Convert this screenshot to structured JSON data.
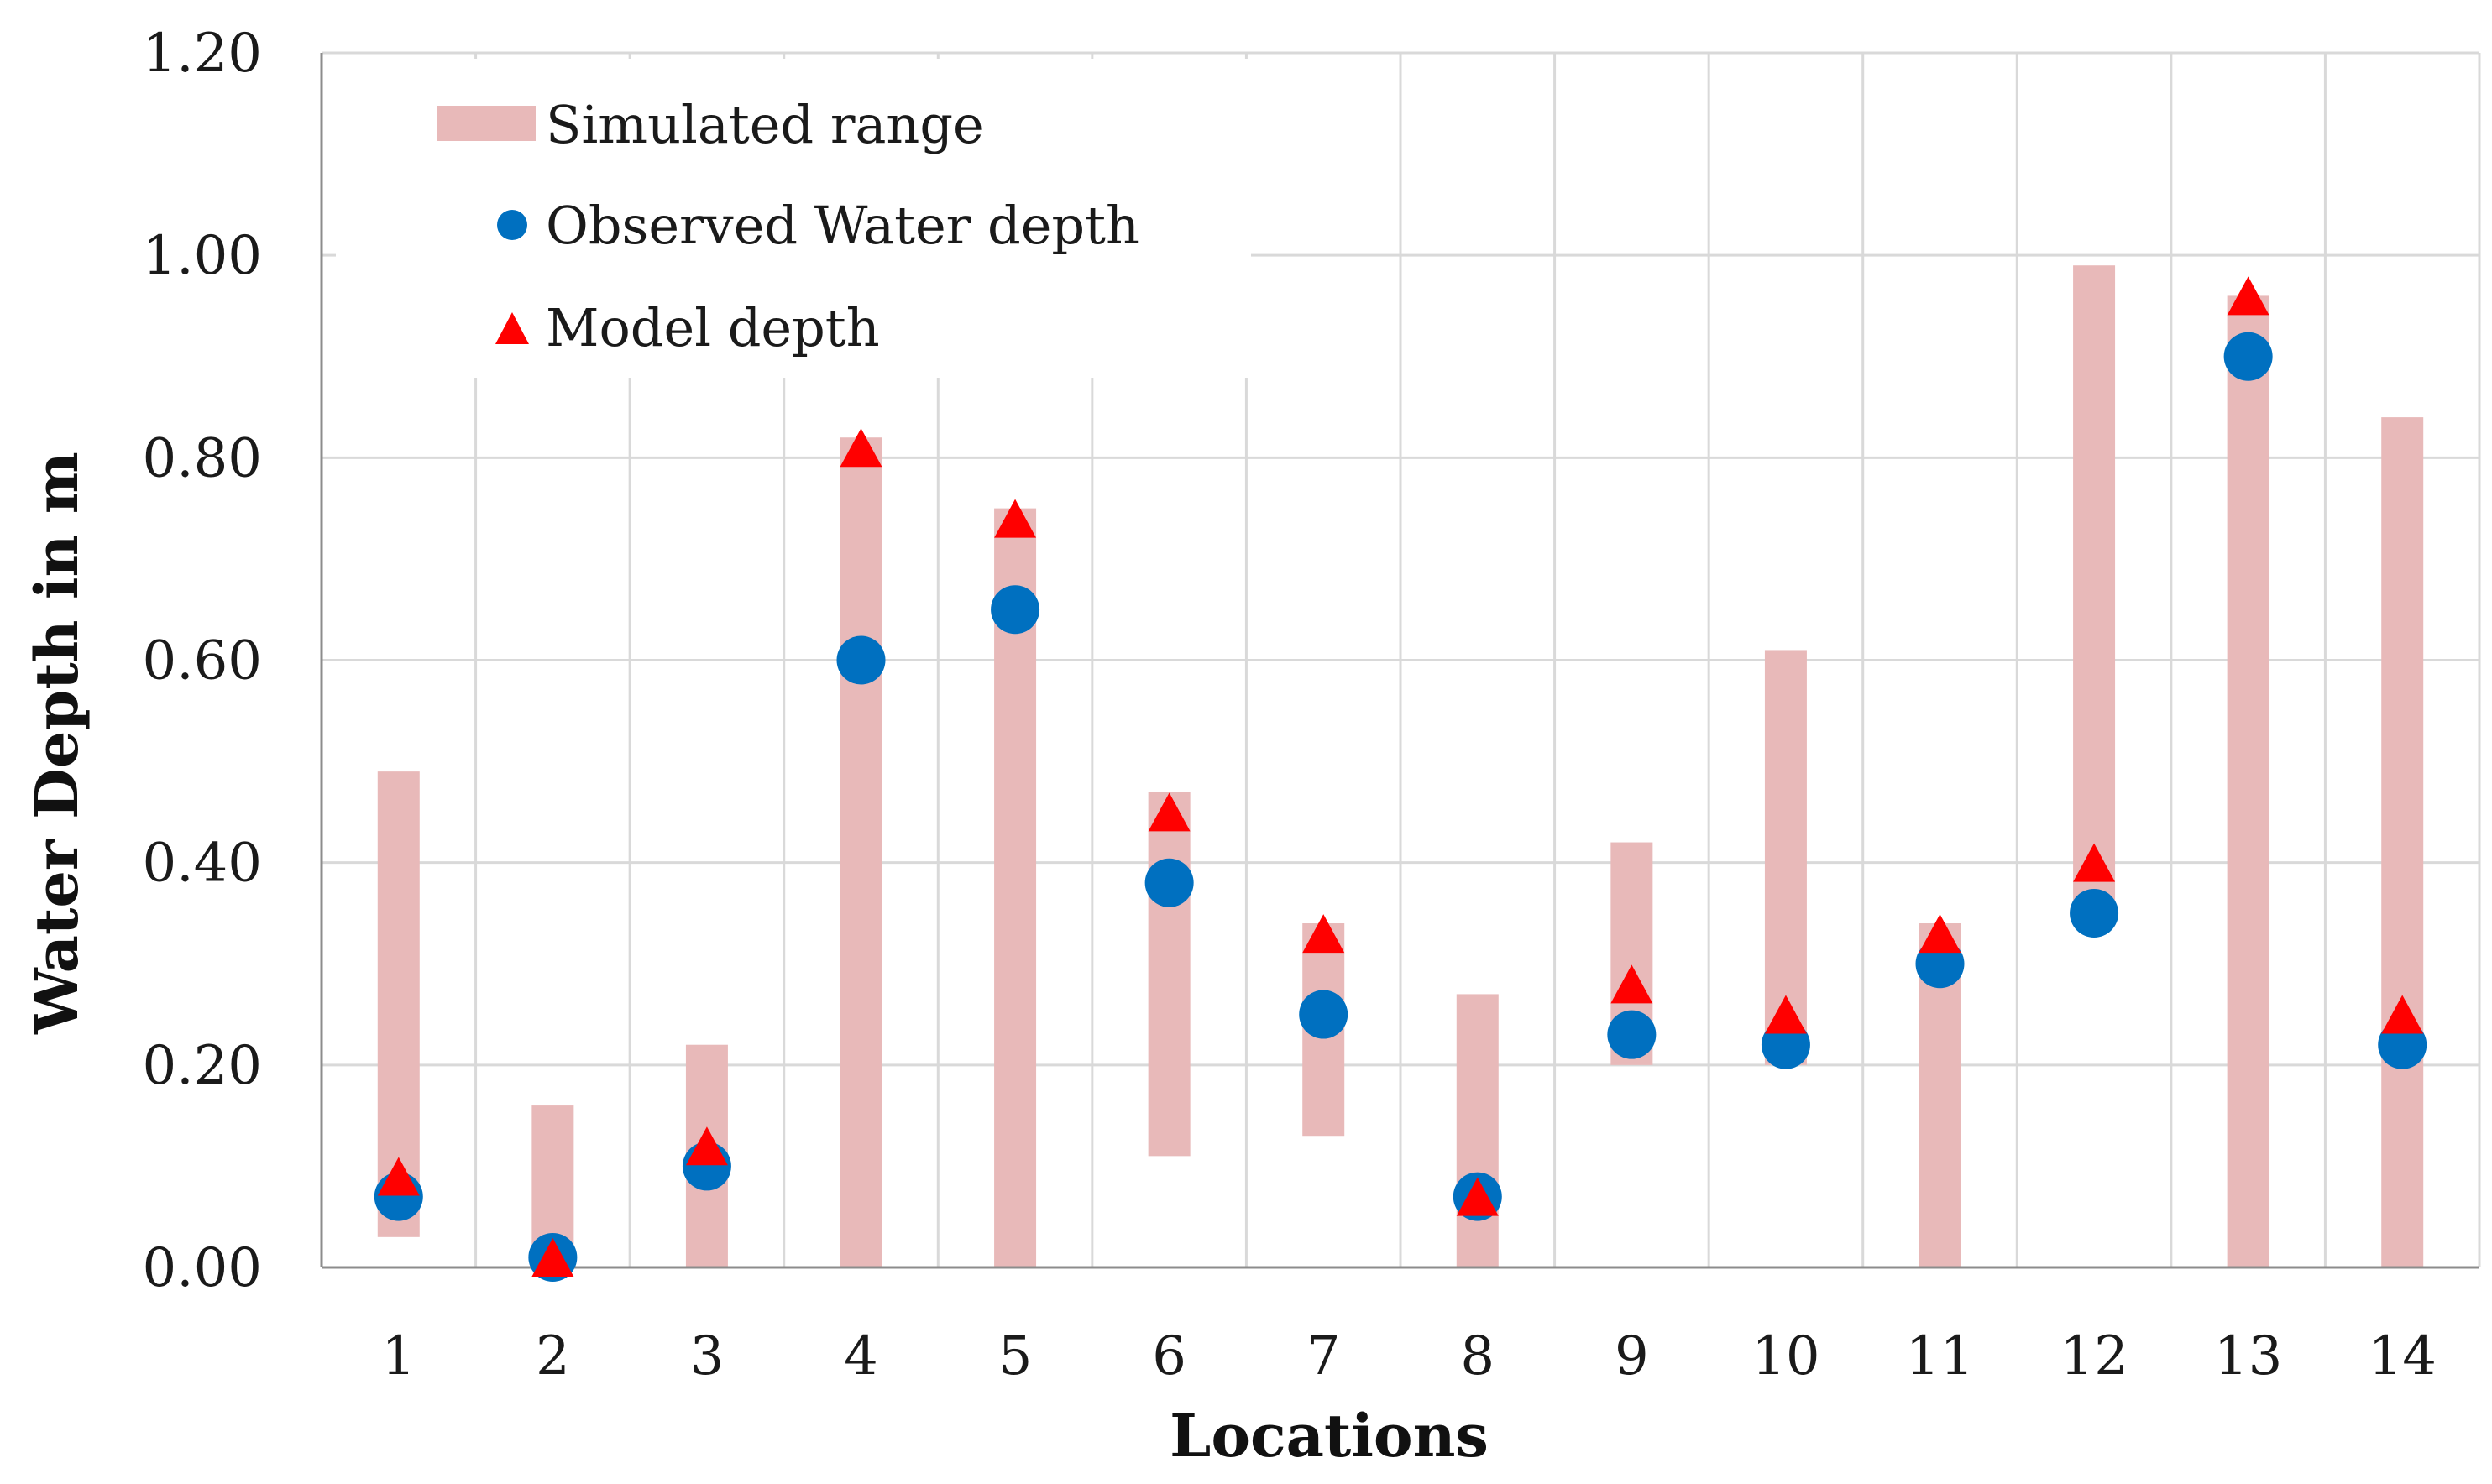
{
  "chart_data": {
    "type": "scatter",
    "title": "",
    "xlabel": "Locations",
    "ylabel": "Water Depth in m",
    "ylim": [
      0,
      1.2
    ],
    "yticks": [
      "0.00",
      "0.20",
      "0.40",
      "0.60",
      "0.80",
      "1.00",
      "1.20"
    ],
    "grid": true,
    "legend_position": "top-left",
    "categories": [
      "1",
      "2",
      "3",
      "4",
      "5",
      "6",
      "7",
      "8",
      "9",
      "10",
      "11",
      "12",
      "13",
      "14"
    ],
    "series": [
      {
        "name": "Simulated range",
        "kind": "range-bar",
        "color": "#e8b9b9",
        "low": [
          0.03,
          0.0,
          0.0,
          0.0,
          0.0,
          0.11,
          0.13,
          0.0,
          0.2,
          0.2,
          0.0,
          0.35,
          0.0,
          0.0
        ],
        "high": [
          0.49,
          0.16,
          0.22,
          0.82,
          0.75,
          0.47,
          0.34,
          0.27,
          0.42,
          0.61,
          0.34,
          0.99,
          0.96,
          0.84
        ]
      },
      {
        "name": "Observed Water depth",
        "kind": "circle",
        "color": "#0070c0",
        "values": [
          0.07,
          0.01,
          0.1,
          0.6,
          0.65,
          0.38,
          0.25,
          0.07,
          0.23,
          0.22,
          0.3,
          0.35,
          0.9,
          0.22
        ]
      },
      {
        "name": "Model depth",
        "kind": "triangle",
        "color": "#ff0000",
        "values": [
          0.09,
          0.01,
          0.12,
          0.81,
          0.74,
          0.45,
          0.33,
          0.07,
          0.28,
          0.25,
          0.33,
          0.4,
          0.96,
          0.25
        ]
      }
    ]
  }
}
